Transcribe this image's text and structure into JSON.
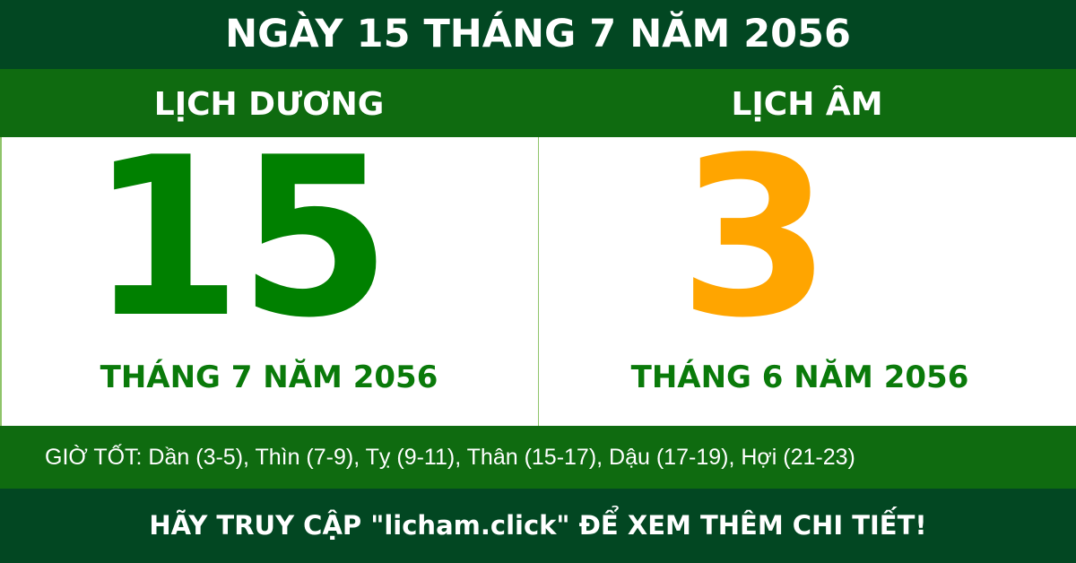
{
  "title": "NGÀY 15 THÁNG 7 NĂM 2056",
  "solar": {
    "heading": "LỊCH DƯƠNG",
    "day": "15",
    "month_year": "THÁNG 7 NĂM 2056"
  },
  "lunar": {
    "heading": "LỊCH ÂM",
    "day": "3",
    "month_year": "THÁNG 6 NĂM 2056"
  },
  "good_hours": "GIỜ TỐT: Dần (3-5), Thìn (7-9), Tỵ (9-11), Thân (15-17), Dậu (17-19), Hợi (21-23)",
  "footer": "HÃY TRUY CẬP \"licham.click\" ĐỂ XEM THÊM CHI TIẾT!",
  "colors": {
    "dark_green": "#024722",
    "green": "#0f6b10",
    "solar_number": "#008000",
    "lunar_number": "#ffa500"
  }
}
